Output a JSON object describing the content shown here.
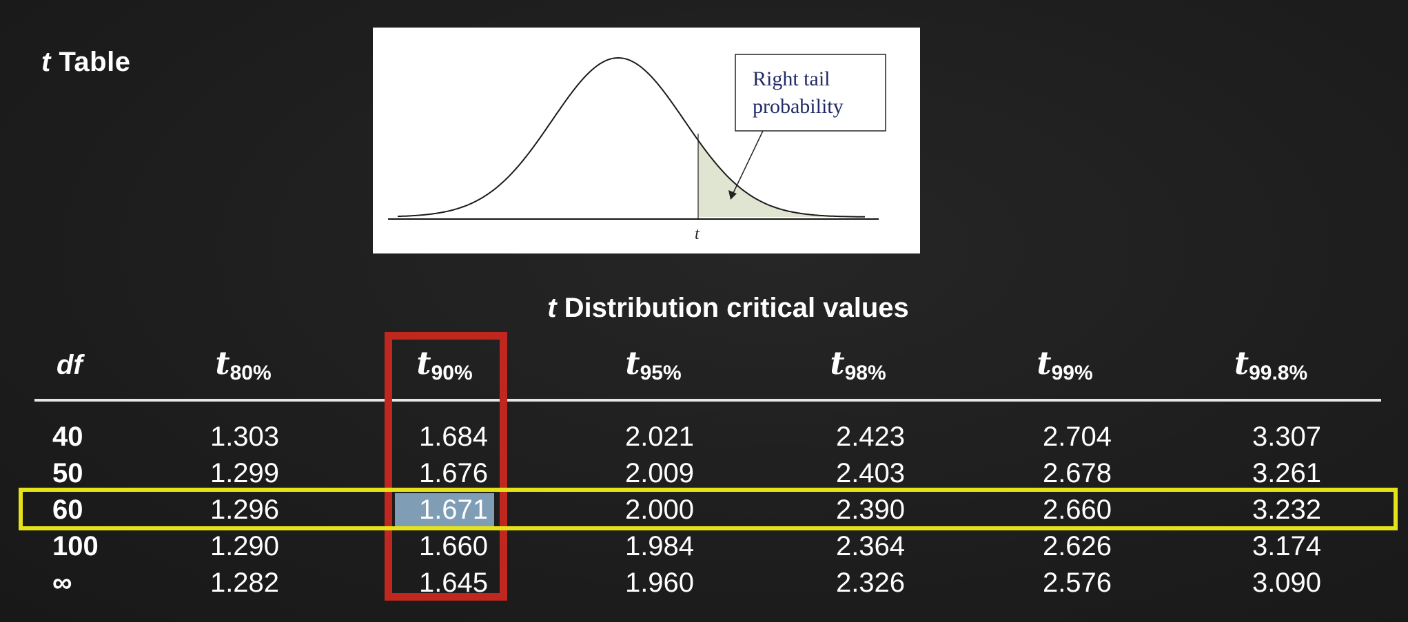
{
  "slide": {
    "title_italic": "t",
    "title_rest": "Table",
    "caption_italic": "t",
    "caption_rest": "Distribution critical values"
  },
  "figure": {
    "callout_line1": "Right tail",
    "callout_line2": "probability",
    "axis_label": "t"
  },
  "table": {
    "df_header": "df",
    "headers": [
      {
        "base": "t",
        "sub": "80%"
      },
      {
        "base": "t",
        "sub": "90%"
      },
      {
        "base": "t",
        "sub": "95%"
      },
      {
        "base": "t",
        "sub": "98%"
      },
      {
        "base": "t",
        "sub": "99%"
      },
      {
        "base": "t",
        "sub": "99.8%"
      }
    ],
    "rows": [
      {
        "df": "40",
        "values": [
          "1.303",
          "1.684",
          "2.021",
          "2.423",
          "2.704",
          "3.307"
        ]
      },
      {
        "df": "50",
        "values": [
          "1.299",
          "1.676",
          "2.009",
          "2.403",
          "2.678",
          "3.261"
        ]
      },
      {
        "df": "60",
        "values": [
          "1.296",
          "1.671",
          "2.000",
          "2.390",
          "2.660",
          "3.232"
        ]
      },
      {
        "df": "100",
        "values": [
          "1.290",
          "1.660",
          "1.984",
          "2.364",
          "2.626",
          "3.174"
        ]
      },
      {
        "df": "∞",
        "values": [
          "1.282",
          "1.645",
          "1.960",
          "2.326",
          "2.576",
          "3.090"
        ]
      }
    ]
  },
  "highlights": {
    "row_box_color": "#e6e21a",
    "column_box_color": "#c0281f",
    "cell_fill_color": "#7f9db5",
    "tail_fill_color": "#dfe5d0"
  }
}
